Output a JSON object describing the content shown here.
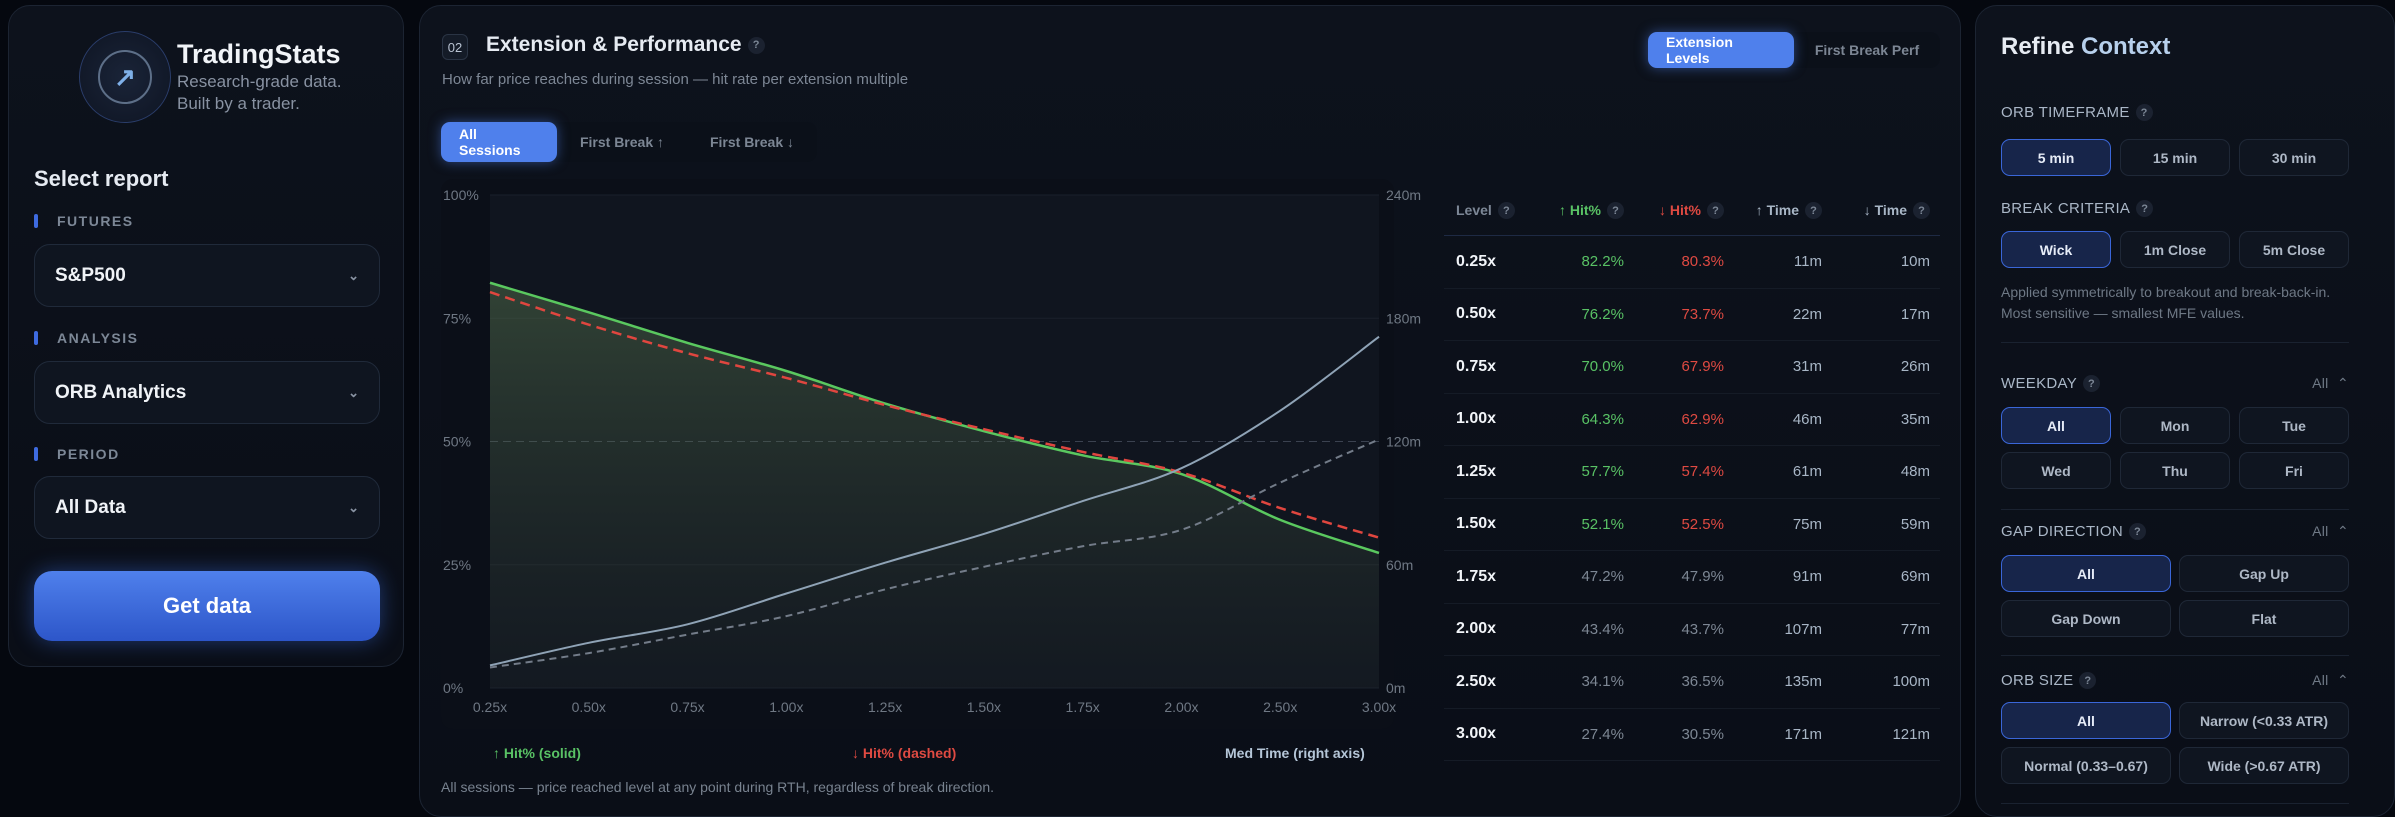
{
  "sidebar": {
    "brand": "TradingStats",
    "brand_sub_1": "Research-grade data.",
    "brand_sub_2": "Built by a trader.",
    "heading": "Select report",
    "fields": [
      {
        "label": "FUTURES",
        "value": "S&P500"
      },
      {
        "label": "ANALYSIS",
        "value": "ORB Analytics"
      },
      {
        "label": "PERIOD",
        "value": "All Data"
      }
    ],
    "get_data": "Get data"
  },
  "main": {
    "badge": "02",
    "title": "Extension & Performance",
    "help": "?",
    "subtitle": "How far price reaches during session — hit rate per extension multiple",
    "view_tabs": [
      {
        "label": "Extension Levels",
        "active": true
      },
      {
        "label": "First Break Perf",
        "active": false
      }
    ],
    "session_tabs": [
      {
        "label": "All Sessions",
        "active": true
      },
      {
        "label": "First Break ↑",
        "active": false
      },
      {
        "label": "First Break ↓",
        "active": false
      }
    ],
    "legend": {
      "up": "↑ Hit% (solid)",
      "down": "↓ Hit% (dashed)",
      "time": "Med Time (right axis)"
    },
    "footnote": "All sessions — price reached level at any point during RTH, regardless of break direction.",
    "table": {
      "headers": [
        "Level",
        "↑ Hit%",
        "↓ Hit%",
        "↑ Time",
        "↓ Time"
      ],
      "rows": [
        [
          "0.25x",
          "82.2%",
          "80.3%",
          "11m",
          "10m"
        ],
        [
          "0.50x",
          "76.2%",
          "73.7%",
          "22m",
          "17m"
        ],
        [
          "0.75x",
          "70.0%",
          "67.9%",
          "31m",
          "26m"
        ],
        [
          "1.00x",
          "64.3%",
          "62.9%",
          "46m",
          "35m"
        ],
        [
          "1.25x",
          "57.7%",
          "57.4%",
          "61m",
          "48m"
        ],
        [
          "1.50x",
          "52.1%",
          "52.5%",
          "75m",
          "59m"
        ],
        [
          "1.75x",
          "47.2%",
          "47.9%",
          "91m",
          "69m"
        ],
        [
          "2.00x",
          "43.4%",
          "43.7%",
          "107m",
          "77m"
        ],
        [
          "2.50x",
          "34.1%",
          "36.5%",
          "135m",
          "100m"
        ],
        [
          "3.00x",
          "27.4%",
          "30.5%",
          "171m",
          "121m"
        ]
      ]
    }
  },
  "chart_data": {
    "type": "line",
    "categories": [
      "0.25x",
      "0.50x",
      "0.75x",
      "1.00x",
      "1.25x",
      "1.50x",
      "1.75x",
      "2.00x",
      "2.50x",
      "3.00x"
    ],
    "y_left": {
      "range": [
        0,
        100
      ],
      "ticks": [
        "0%",
        "25%",
        "50%",
        "75%",
        "100%"
      ]
    },
    "y_right": {
      "range": [
        0,
        240
      ],
      "ticks": [
        "0m",
        "60m",
        "120m",
        "180m",
        "240m"
      ]
    },
    "series": [
      {
        "name": "↑ Hit% (solid)",
        "axis": "left",
        "style": "solid",
        "color": "#5ac85f",
        "values": [
          82.2,
          76.2,
          70.0,
          64.3,
          57.7,
          52.1,
          47.2,
          43.4,
          34.1,
          27.4
        ]
      },
      {
        "name": "↓ Hit% (dashed)",
        "axis": "left",
        "style": "dashed",
        "color": "#e0463f",
        "values": [
          80.3,
          73.7,
          67.9,
          62.9,
          57.4,
          52.5,
          47.9,
          43.7,
          36.5,
          30.5
        ]
      },
      {
        "name": "Med Time (right axis)",
        "axis": "right",
        "style": "solid",
        "color": "#8fa3b6",
        "values": [
          11,
          22,
          31,
          46,
          61,
          75,
          91,
          107,
          135,
          171
        ]
      },
      {
        "axis": "right",
        "style": "dashed",
        "color": "#737c89",
        "values": [
          10,
          17,
          26,
          35,
          48,
          59,
          69,
          77,
          100,
          121
        ]
      }
    ],
    "reference_line": 50
  },
  "refine": {
    "title_1": "Refine",
    "title_2": "Context",
    "orb_timeframe": {
      "label": "ORB TIMEFRAME",
      "options": [
        "5 min",
        "15 min",
        "30 min"
      ],
      "selected": 0
    },
    "break_criteria": {
      "label": "BREAK CRITERIA",
      "options": [
        "Wick",
        "1m Close",
        "5m Close"
      ],
      "selected": 0,
      "note": "Applied symmetrically to breakout and break-back-in. Most sensitive — smallest MFE values."
    },
    "weekday": {
      "label": "WEEKDAY",
      "summary": "All",
      "options": [
        "All",
        "Mon",
        "Tue",
        "Wed",
        "Thu",
        "Fri"
      ],
      "selected": 0
    },
    "gap_direction": {
      "label": "GAP DIRECTION",
      "summary": "All",
      "options": [
        "All",
        "Gap Up",
        "Gap Down",
        "Flat"
      ],
      "selected": 0
    },
    "orb_size": {
      "label": "ORB SIZE",
      "summary": "All",
      "options": [
        "All",
        "Narrow (<0.33 ATR)",
        "Normal (0.33–0.67)",
        "Wide (>0.67 ATR)"
      ],
      "selected": 0
    }
  }
}
